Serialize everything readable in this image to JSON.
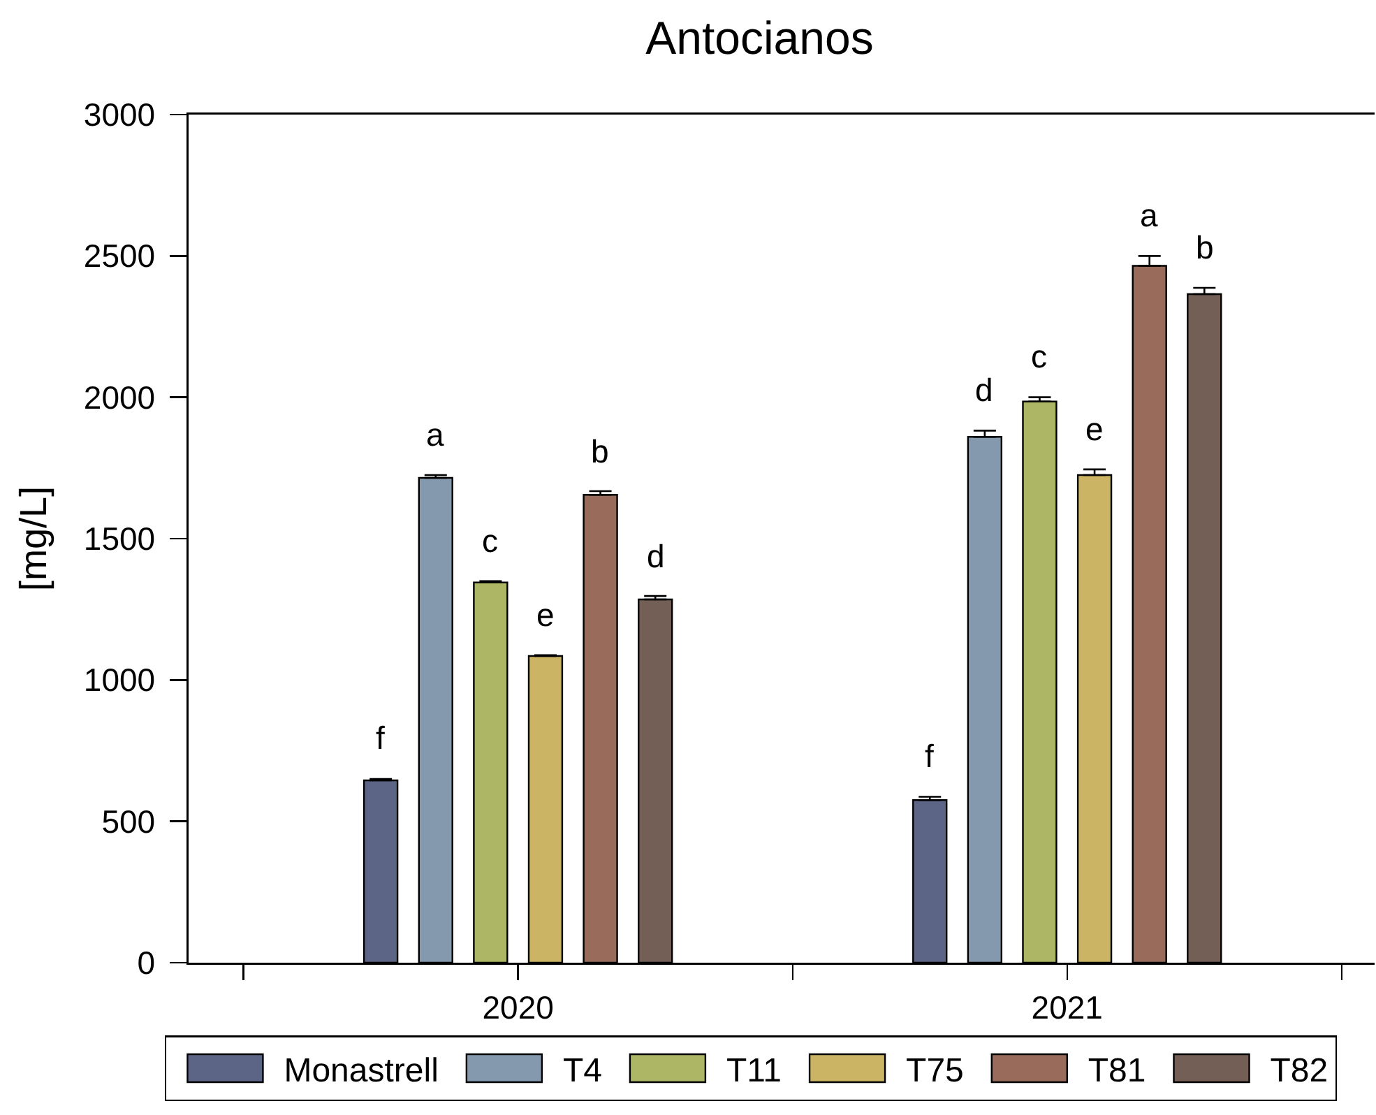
{
  "chart_data": {
    "type": "bar",
    "title": "Antocianos",
    "ylabel": "[mg/L]",
    "categories": [
      "2020",
      "2021"
    ],
    "series": [
      {
        "name": "Monastrell",
        "color": "#5d6586",
        "values": [
          645,
          575
        ],
        "errors": [
          [
            645,
            650
          ],
          [
            575,
            587
          ]
        ],
        "value_labels": [
          "f",
          "f"
        ]
      },
      {
        "name": "T4",
        "color": "#8498ae",
        "values": [
          1715,
          1860
        ],
        "errors": [
          [
            1715,
            1725
          ],
          [
            1860,
            1882
          ]
        ],
        "value_labels": [
          "a",
          "d"
        ]
      },
      {
        "name": "T11",
        "color": "#adb665",
        "values": [
          1345,
          1985
        ],
        "errors": [
          [
            1345,
            1350
          ],
          [
            1985,
            2000
          ]
        ],
        "value_labels": [
          "c",
          "c"
        ]
      },
      {
        "name": "T75",
        "color": "#ccb465",
        "values": [
          1085,
          1725
        ],
        "errors": [
          [
            1085,
            1088
          ],
          [
            1725,
            1745
          ]
        ],
        "value_labels": [
          "e",
          "e"
        ]
      },
      {
        "name": "T81",
        "color": "#986b5b",
        "values": [
          1655,
          2465
        ],
        "errors": [
          [
            1655,
            1668
          ],
          [
            2465,
            2500
          ]
        ],
        "value_labels": [
          "b",
          "a"
        ]
      },
      {
        "name": "T82",
        "color": "#735f55",
        "values": [
          1285,
          2365
        ],
        "errors": [
          [
            1285,
            1297
          ],
          [
            2365,
            2387
          ]
        ],
        "value_labels": [
          "d",
          "b"
        ]
      }
    ],
    "ylim": [
      0,
      3000
    ],
    "yticks": [
      0,
      500,
      1000,
      1500,
      2000,
      2500,
      3000
    ],
    "grid": false,
    "legend": "bottom"
  }
}
